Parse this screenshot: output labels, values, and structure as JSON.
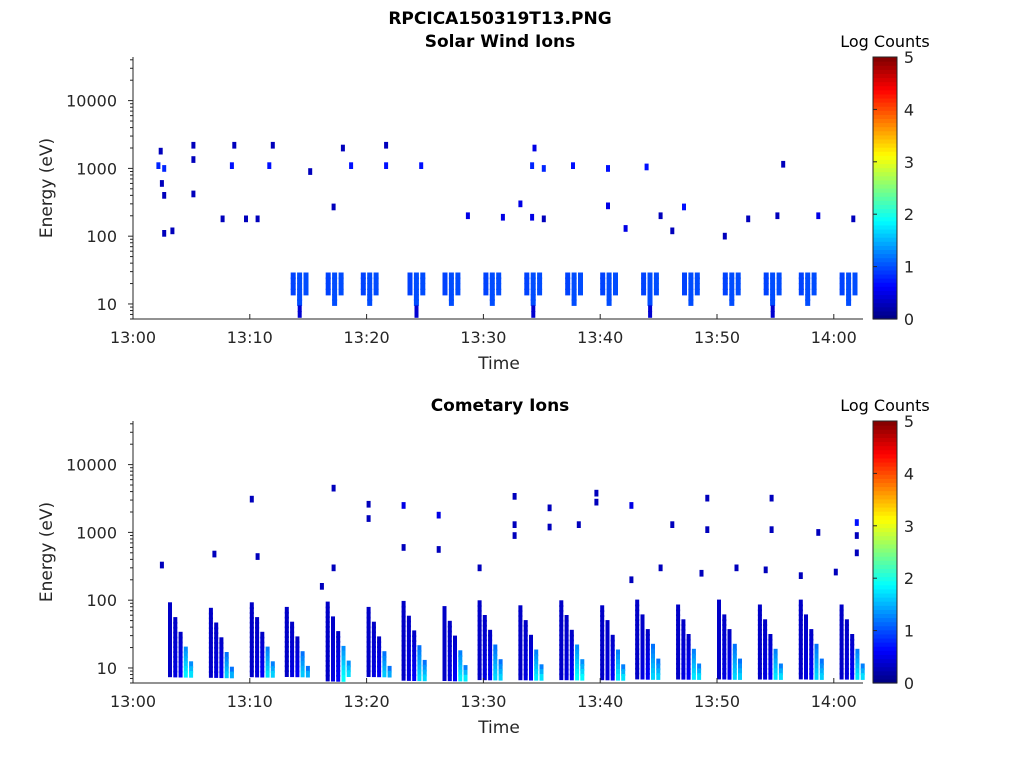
{
  "figure_title": "RPCICA150319T13.PNG",
  "colors": {
    "colormap": [
      "#00007f",
      "#0000ff",
      "#007fff",
      "#00ffff",
      "#7fff7f",
      "#ffff00",
      "#ff7f00",
      "#ff0000",
      "#7f0000"
    ],
    "axis": "#262626",
    "background": "#ffffff"
  },
  "chart_data": [
    {
      "type": "heatmap",
      "title": "Solar Wind Ions",
      "xlabel": "Time",
      "ylabel": "Energy (eV)",
      "xlim": [
        "13:00",
        "14:02.5"
      ],
      "ylim": [
        6,
        44000
      ],
      "yscale": "log",
      "xticks": [
        "13:00",
        "13:10",
        "13:20",
        "13:30",
        "13:40",
        "13:50",
        "14:00"
      ],
      "yticks": [
        "10",
        "100",
        "1000",
        "10000"
      ],
      "colorbar": {
        "label": "Log Counts",
        "range": [
          0,
          5
        ],
        "ticks": [
          "0",
          "1",
          "2",
          "3",
          "4",
          "5"
        ]
      },
      "low_energy_cycles": [
        {
          "t": 13.5,
          "logc": 1.0
        },
        {
          "t": 16.5,
          "logc": 1.0
        },
        {
          "t": 19.5,
          "logc": 1.0
        },
        {
          "t": 23.5,
          "logc": 1.0
        },
        {
          "t": 26.5,
          "logc": 1.0
        },
        {
          "t": 30.0,
          "logc": 1.0
        },
        {
          "t": 33.5,
          "logc": 1.0
        },
        {
          "t": 37.0,
          "logc": 1.0
        },
        {
          "t": 40.0,
          "logc": 1.0
        },
        {
          "t": 43.5,
          "logc": 1.0
        },
        {
          "t": 47.0,
          "logc": 1.0
        },
        {
          "t": 50.5,
          "logc": 1.0
        },
        {
          "t": 54.0,
          "logc": 1.0
        },
        {
          "t": 57.0,
          "logc": 1.0
        },
        {
          "t": 60.5,
          "logc": 1.0
        }
      ],
      "sparse_points": [
        {
          "t": 2.0,
          "e": 1100,
          "logc": 0.8
        },
        {
          "t": 2.5,
          "e": 1000,
          "logc": 0.8
        },
        {
          "t": 2.2,
          "e": 1800,
          "logc": 0.3
        },
        {
          "t": 5.0,
          "e": 2200,
          "logc": 0.3
        },
        {
          "t": 5.0,
          "e": 1350,
          "logc": 0.3
        },
        {
          "t": 8.5,
          "e": 2200,
          "logc": 0.3
        },
        {
          "t": 8.3,
          "e": 1100,
          "logc": 0.7
        },
        {
          "t": 11.5,
          "e": 1100,
          "logc": 0.7
        },
        {
          "t": 11.8,
          "e": 2200,
          "logc": 0.3
        },
        {
          "t": 15.0,
          "e": 900,
          "logc": 0.3
        },
        {
          "t": 18.5,
          "e": 1100,
          "logc": 0.7
        },
        {
          "t": 17.8,
          "e": 2000,
          "logc": 0.3
        },
        {
          "t": 21.5,
          "e": 1100,
          "logc": 0.7
        },
        {
          "t": 21.5,
          "e": 2200,
          "logc": 0.3
        },
        {
          "t": 24.5,
          "e": 1100,
          "logc": 0.7
        },
        {
          "t": 34.0,
          "e": 1100,
          "logc": 0.8
        },
        {
          "t": 34.2,
          "e": 2000,
          "logc": 0.5
        },
        {
          "t": 35.0,
          "e": 1000,
          "logc": 0.8
        },
        {
          "t": 37.5,
          "e": 1100,
          "logc": 0.7
        },
        {
          "t": 40.5,
          "e": 1000,
          "logc": 0.7
        },
        {
          "t": 43.8,
          "e": 1050,
          "logc": 0.7
        },
        {
          "t": 55.5,
          "e": 1150,
          "logc": 0.3
        },
        {
          "t": 2.3,
          "e": 600,
          "logc": 0.3
        },
        {
          "t": 2.5,
          "e": 400,
          "logc": 0.3
        },
        {
          "t": 5.0,
          "e": 420,
          "logc": 0.3
        },
        {
          "t": 2.5,
          "e": 110,
          "logc": 0.3
        },
        {
          "t": 3.2,
          "e": 120,
          "logc": 0.3
        },
        {
          "t": 7.5,
          "e": 180,
          "logc": 0.3
        },
        {
          "t": 9.5,
          "e": 180,
          "logc": 0.3
        },
        {
          "t": 10.5,
          "e": 180,
          "logc": 0.3
        },
        {
          "t": 17.0,
          "e": 270,
          "logc": 0.3
        },
        {
          "t": 28.5,
          "e": 200,
          "logc": 0.5
        },
        {
          "t": 31.5,
          "e": 190,
          "logc": 0.5
        },
        {
          "t": 33.0,
          "e": 300,
          "logc": 0.5
        },
        {
          "t": 34.0,
          "e": 190,
          "logc": 0.5
        },
        {
          "t": 35.0,
          "e": 180,
          "logc": 0.3
        },
        {
          "t": 40.5,
          "e": 280,
          "logc": 0.5
        },
        {
          "t": 42.0,
          "e": 130,
          "logc": 0.5
        },
        {
          "t": 45.0,
          "e": 200,
          "logc": 0.3
        },
        {
          "t": 46.0,
          "e": 120,
          "logc": 0.3
        },
        {
          "t": 47.0,
          "e": 270,
          "logc": 0.7
        },
        {
          "t": 50.5,
          "e": 100,
          "logc": 0.3
        },
        {
          "t": 52.5,
          "e": 180,
          "logc": 0.3
        },
        {
          "t": 55.0,
          "e": 200,
          "logc": 0.3
        },
        {
          "t": 58.5,
          "e": 200,
          "logc": 0.5
        },
        {
          "t": 61.5,
          "e": 180,
          "logc": 0.3
        }
      ]
    },
    {
      "type": "heatmap",
      "title": "Cometary Ions",
      "xlabel": "Time",
      "ylabel": "Energy (eV)",
      "xlim": [
        "13:00",
        "14:02.5"
      ],
      "ylim": [
        6,
        44000
      ],
      "yscale": "log",
      "xticks": [
        "13:00",
        "13:10",
        "13:20",
        "13:30",
        "13:40",
        "13:50",
        "14:00"
      ],
      "yticks": [
        "10",
        "100",
        "1000",
        "10000"
      ],
      "colorbar": {
        "label": "Log Counts",
        "range": [
          0,
          5
        ],
        "ticks": [
          "0",
          "1",
          "2",
          "3",
          "4",
          "5"
        ]
      },
      "sweep_cycles": [
        {
          "t": 3.0,
          "peak_logc": 1.9
        },
        {
          "t": 6.5,
          "peak_logc": 1.7
        },
        {
          "t": 10.0,
          "peak_logc": 1.8
        },
        {
          "t": 13.0,
          "peak_logc": 1.7
        },
        {
          "t": 16.5,
          "peak_logc": 1.9
        },
        {
          "t": 20.0,
          "peak_logc": 1.7
        },
        {
          "t": 23.0,
          "peak_logc": 1.7
        },
        {
          "t": 26.5,
          "peak_logc": 1.8
        },
        {
          "t": 29.5,
          "peak_logc": 1.7
        },
        {
          "t": 33.0,
          "peak_logc": 1.8
        },
        {
          "t": 36.5,
          "peak_logc": 1.9
        },
        {
          "t": 40.0,
          "peak_logc": 1.8
        },
        {
          "t": 43.0,
          "peak_logc": 1.7
        },
        {
          "t": 46.5,
          "peak_logc": 1.8
        },
        {
          "t": 50.0,
          "peak_logc": 1.7
        },
        {
          "t": 53.5,
          "peak_logc": 1.8
        },
        {
          "t": 57.0,
          "peak_logc": 1.7
        },
        {
          "t": 60.5,
          "peak_logc": 1.8
        }
      ],
      "sparse_points": [
        {
          "t": 2.3,
          "e": 330,
          "logc": 0.3
        },
        {
          "t": 6.8,
          "e": 480,
          "logc": 0.3
        },
        {
          "t": 10.5,
          "e": 440,
          "logc": 0.3
        },
        {
          "t": 10.0,
          "e": 3100,
          "logc": 0.3
        },
        {
          "t": 17.0,
          "e": 4500,
          "logc": 0.3
        },
        {
          "t": 16.0,
          "e": 160,
          "logc": 0.3
        },
        {
          "t": 17.0,
          "e": 300,
          "logc": 0.3
        },
        {
          "t": 20.0,
          "e": 2600,
          "logc": 0.3
        },
        {
          "t": 20.0,
          "e": 1600,
          "logc": 0.3
        },
        {
          "t": 23.0,
          "e": 2500,
          "logc": 0.5
        },
        {
          "t": 23.0,
          "e": 600,
          "logc": 0.3
        },
        {
          "t": 26.0,
          "e": 1800,
          "logc": 0.5
        },
        {
          "t": 26.0,
          "e": 560,
          "logc": 0.3
        },
        {
          "t": 29.5,
          "e": 300,
          "logc": 0.3
        },
        {
          "t": 32.5,
          "e": 3400,
          "logc": 0.3
        },
        {
          "t": 32.5,
          "e": 1300,
          "logc": 0.3
        },
        {
          "t": 32.5,
          "e": 900,
          "logc": 0.3
        },
        {
          "t": 35.5,
          "e": 2300,
          "logc": 0.3
        },
        {
          "t": 35.5,
          "e": 1200,
          "logc": 0.3
        },
        {
          "t": 38.0,
          "e": 1300,
          "logc": 0.3
        },
        {
          "t": 39.5,
          "e": 3800,
          "logc": 0.3
        },
        {
          "t": 39.5,
          "e": 2800,
          "logc": 0.3
        },
        {
          "t": 42.5,
          "e": 2500,
          "logc": 0.5
        },
        {
          "t": 46.0,
          "e": 1300,
          "logc": 0.3
        },
        {
          "t": 49.0,
          "e": 3200,
          "logc": 0.3
        },
        {
          "t": 49.0,
          "e": 1100,
          "logc": 0.3
        },
        {
          "t": 54.5,
          "e": 3200,
          "logc": 0.3
        },
        {
          "t": 54.5,
          "e": 1100,
          "logc": 0.3
        },
        {
          "t": 58.5,
          "e": 1000,
          "logc": 0.3
        },
        {
          "t": 61.8,
          "e": 1400,
          "logc": 0.7
        },
        {
          "t": 61.8,
          "e": 900,
          "logc": 0.3
        },
        {
          "t": 61.8,
          "e": 500,
          "logc": 0.3
        },
        {
          "t": 42.5,
          "e": 200,
          "logc": 0.3
        },
        {
          "t": 45.0,
          "e": 300,
          "logc": 0.3
        },
        {
          "t": 48.5,
          "e": 250,
          "logc": 0.3
        },
        {
          "t": 51.5,
          "e": 300,
          "logc": 0.3
        },
        {
          "t": 54.0,
          "e": 280,
          "logc": 0.3
        },
        {
          "t": 57.0,
          "e": 230,
          "logc": 0.3
        },
        {
          "t": 60.0,
          "e": 260,
          "logc": 0.3
        }
      ]
    }
  ]
}
